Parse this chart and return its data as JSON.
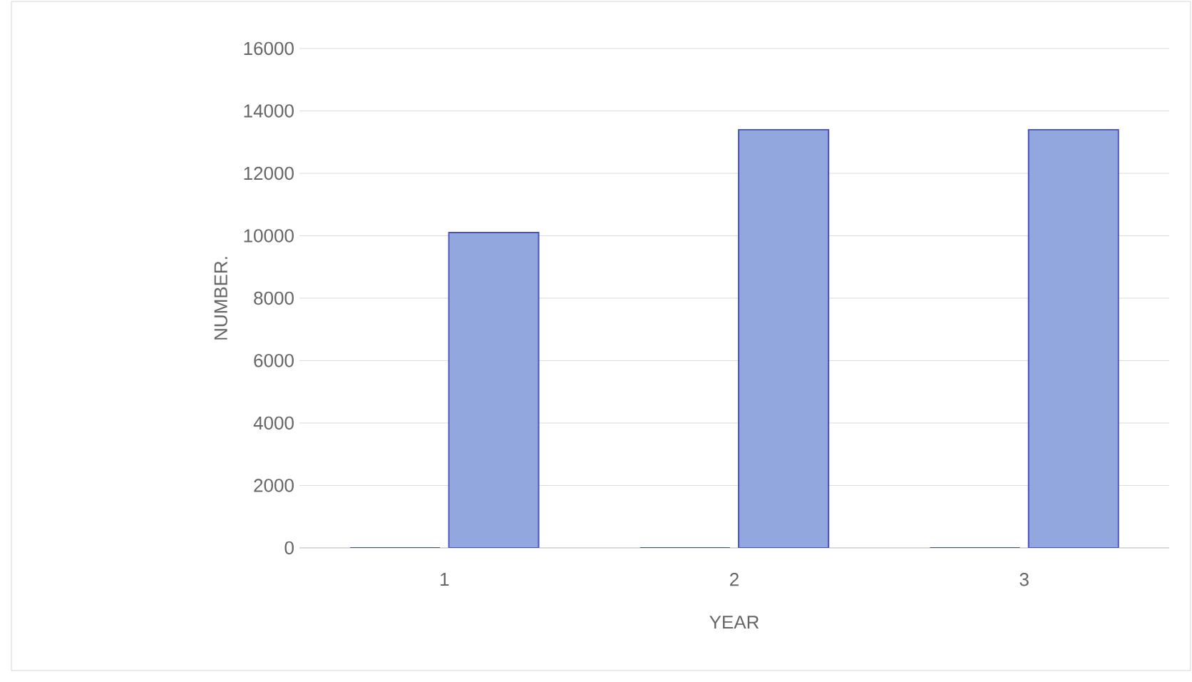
{
  "chart_data": {
    "type": "bar",
    "xlabel": "YEAR",
    "ylabel": "NUMBER.",
    "categories": [
      "1",
      "2",
      "3"
    ],
    "series": [
      {
        "color": "#8faa5c",
        "values": [
          0,
          0,
          0
        ]
      },
      {
        "color": "#93a7df",
        "values": [
          10100,
          13400,
          13400
        ]
      }
    ],
    "ylim": [
      0,
      16000
    ],
    "yticks": [
      0,
      2000,
      4000,
      6000,
      8000,
      10000,
      12000,
      14000,
      16000
    ],
    "grid": "y"
  }
}
